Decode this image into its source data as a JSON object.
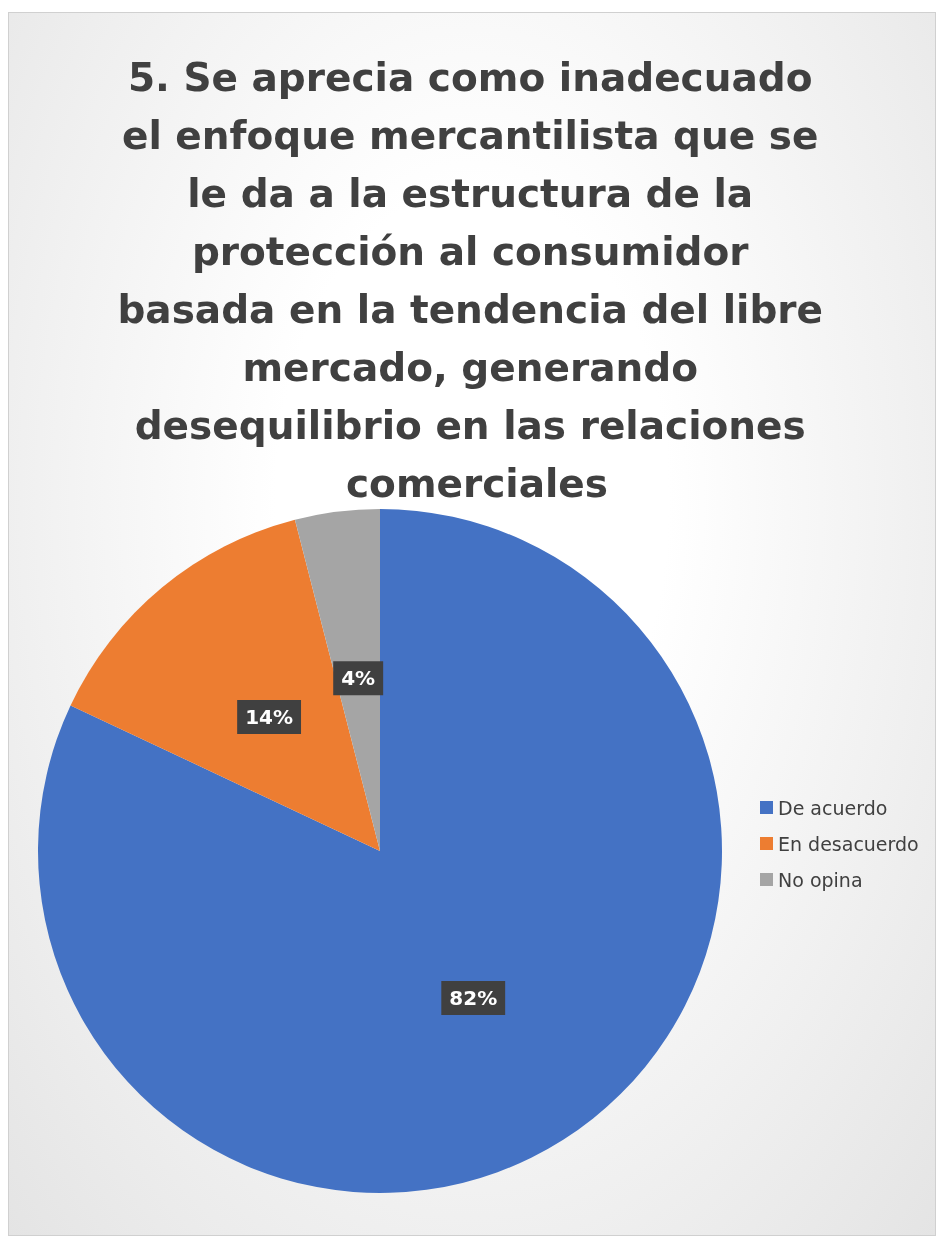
{
  "chart_data": {
    "type": "pie",
    "title": "5. Se aprecia como inadecuado el enfoque mercantilista que se le da a la estructura de la protección al consumidor basada en la tendencia del libre mercado, generando desequilibrio en las relaciones comerciales",
    "categories": [
      "De acuerdo",
      "En desacuerdo",
      "No opina"
    ],
    "values": [
      82,
      14,
      4
    ],
    "value_labels": [
      "82%",
      "14%",
      "4%"
    ],
    "colors": [
      "#4472c4",
      "#ed7d31",
      "#a5a5a5"
    ],
    "legend": "right"
  }
}
